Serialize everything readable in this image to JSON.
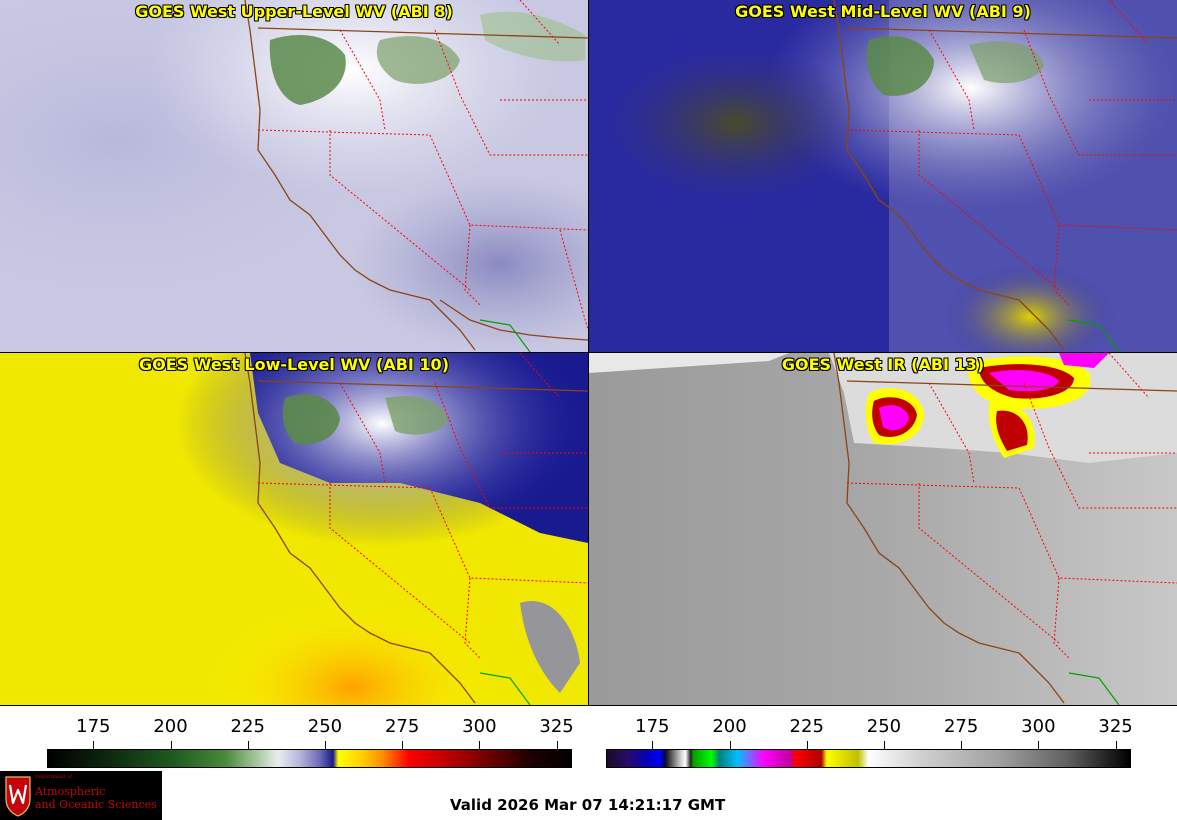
{
  "panels": [
    {
      "id": "ul",
      "title": "GOES West Upper-Level WV (ABI 8)"
    },
    {
      "id": "ur",
      "title": "GOES West Mid-Level WV (ABI 9)"
    },
    {
      "id": "ll",
      "title": "GOES West Low-Level WV (ABI 10)"
    },
    {
      "id": "lr",
      "title": "GOES West IR (ABI 13)"
    }
  ],
  "colorbars": {
    "left": {
      "ticks": [
        "175",
        "200",
        "225",
        "250",
        "275",
        "300",
        "325"
      ],
      "min": 160,
      "max": 330
    },
    "right": {
      "ticks": [
        "175",
        "200",
        "225",
        "250",
        "275",
        "300",
        "325"
      ],
      "min": 160,
      "max": 330
    }
  },
  "logo": {
    "dept": "Department of",
    "line1": "Atmospheric",
    "line2": "and Oceanic Sciences"
  },
  "valid_time": "Valid 2026 Mar 07 14:21:17 GMT",
  "colors": {
    "title_text": "#ffff00",
    "state_borders": "#ff0000",
    "coastline": "#8b4513",
    "mexico_border": "#00a000"
  }
}
